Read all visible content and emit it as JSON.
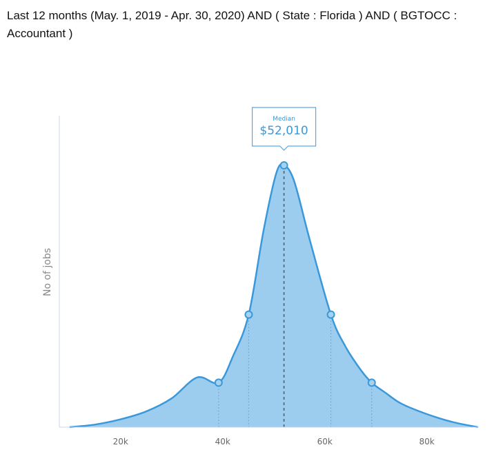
{
  "header": {
    "query": "Last 12 months (May. 1, 2019 - Apr. 30, 2020) AND ( State : Florida ) AND ( BGTOCC : Accountant )"
  },
  "colors": {
    "fill": "#9dcdee",
    "line": "#3a98da",
    "axis": "#c9d4f2",
    "tooltip_border": "#5aa8dd",
    "tooltip_text": "#3a98da"
  },
  "chart_data": {
    "type": "area",
    "ylabel": "No of jobs",
    "xlabel": "",
    "xlim": [
      8000,
      91000
    ],
    "ylim": [
      0,
      1
    ],
    "x_ticks": [
      {
        "value": 20000,
        "label": "20k"
      },
      {
        "value": 40000,
        "label": "40k"
      },
      {
        "value": 60000,
        "label": "60k"
      },
      {
        "value": 80000,
        "label": "80k"
      }
    ],
    "series": [
      {
        "x": [
          10000,
          15000,
          20000,
          25000,
          30000,
          35000,
          39200,
          42000,
          45100,
          48000,
          50500,
          52010,
          54000,
          57000,
          61200,
          64000,
          67000,
          69200,
          72000,
          75000,
          80000,
          85000,
          90000
        ],
        "y": [
          0.0,
          0.01,
          0.03,
          0.06,
          0.11,
          0.19,
          0.17,
          0.27,
          0.43,
          0.75,
          0.97,
          1.0,
          0.94,
          0.72,
          0.43,
          0.31,
          0.22,
          0.17,
          0.13,
          0.09,
          0.05,
          0.02,
          0.0
        ]
      }
    ],
    "markers": [
      {
        "x": 39200,
        "y": 0.17,
        "dotted": true
      },
      {
        "x": 45100,
        "y": 0.43,
        "dotted": true
      },
      {
        "x": 52010,
        "y": 1.0,
        "dotted": false
      },
      {
        "x": 61200,
        "y": 0.43,
        "dotted": true
      },
      {
        "x": 69200,
        "y": 0.17,
        "dotted": true
      }
    ],
    "median": {
      "x": 52010,
      "label": "Median",
      "value": "$52,010"
    }
  }
}
